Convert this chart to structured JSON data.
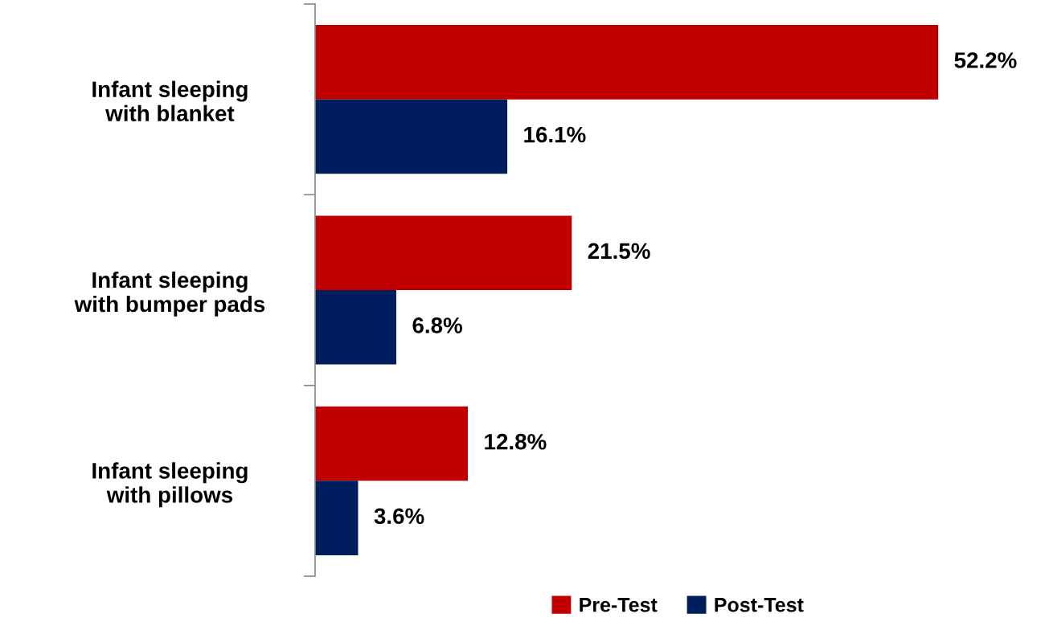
{
  "chart_data": {
    "type": "bar",
    "orientation": "horizontal",
    "categories": [
      "Infant sleeping\nwith blanket",
      "Infant sleeping\nwith bumper pads",
      "Infant sleeping\nwith pillows"
    ],
    "series": [
      {
        "name": "Pre-Test",
        "color": "#c00000",
        "values": [
          52.2,
          21.5,
          12.8
        ],
        "value_labels": [
          "52.2%",
          "21.5%",
          "12.8%"
        ]
      },
      {
        "name": "Post-Test",
        "color": "#001e5e",
        "values": [
          16.1,
          6.8,
          3.6
        ],
        "value_labels": [
          "16.1%",
          "6.8%",
          "3.6%"
        ]
      }
    ],
    "legend": "bottom",
    "grid": false
  }
}
